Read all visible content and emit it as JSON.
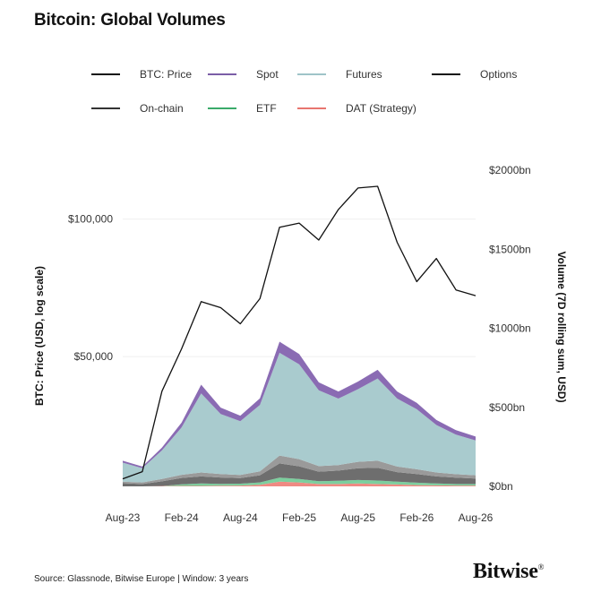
{
  "title": "Bitcoin: Global Volumes",
  "legend": [
    {
      "label": "BTC: Price",
      "color": "#111111"
    },
    {
      "label": "Spot",
      "color": "#7b5ea7"
    },
    {
      "label": "Futures",
      "color": "#9fc4c8"
    },
    {
      "label": "Options",
      "color": "#111111"
    },
    {
      "label": "On-chain",
      "color": "#333333"
    },
    {
      "label": "ETF",
      "color": "#3aaa6a"
    },
    {
      "label": "DAT (Strategy)",
      "color": "#e8756f"
    }
  ],
  "source": "Source: Glassnode, Bitwise Europe | Window: 3 years",
  "brand": "Bitwise",
  "brand_mark": "®",
  "chart_data": {
    "type": "area",
    "x": [
      "Aug-23",
      "Oct-23",
      "Dec-23",
      "Feb-24",
      "Apr-24",
      "Jun-24",
      "Aug-24",
      "Oct-24",
      "Dec-24",
      "Feb-25",
      "Apr-25",
      "Jun-25",
      "Aug-25",
      "Oct-25",
      "Dec-25",
      "Feb-26",
      "Apr-26",
      "Jun-26",
      "Aug-26"
    ],
    "x_tick_labels": [
      "Aug-23",
      "Feb-24",
      "Aug-24",
      "Feb-25",
      "Aug-25",
      "Feb-26",
      "Aug-26"
    ],
    "left_axis": {
      "label": "BTC: Price (USD, log scale)",
      "scale": "log",
      "ticks": [
        50000,
        100000
      ],
      "tick_labels": [
        "$50,000",
        "$100,000"
      ],
      "range": [
        26000,
        128000
      ]
    },
    "right_axis": {
      "label": "Volume (7D rolling sum, USD)",
      "ticks": [
        0,
        500,
        1000,
        1500,
        2000
      ],
      "tick_labels": [
        "$0bn",
        "$500bn",
        "$1000bn",
        "$1500bn",
        "$2000bn"
      ],
      "range": [
        0,
        2000
      ]
    },
    "price": [
      27000,
      28000,
      42000,
      52000,
      66000,
      64000,
      59000,
      67000,
      96000,
      98000,
      90000,
      105000,
      117000,
      118000,
      89000,
      73000,
      82000,
      70000,
      68000
    ],
    "series": [
      {
        "name": "DAT (Strategy)",
        "values": [
          0,
          0,
          2,
          3,
          3,
          4,
          5,
          10,
          30,
          25,
          15,
          15,
          18,
          15,
          12,
          8,
          6,
          5,
          5
        ]
      },
      {
        "name": "ETF",
        "values": [
          0,
          0,
          0,
          10,
          15,
          12,
          12,
          15,
          25,
          22,
          18,
          20,
          22,
          22,
          18,
          15,
          12,
          10,
          10
        ]
      },
      {
        "name": "On-chain",
        "values": [
          20,
          15,
          30,
          40,
          45,
          40,
          35,
          45,
          90,
          80,
          60,
          65,
          75,
          80,
          60,
          55,
          45,
          40,
          35
        ]
      },
      {
        "name": "Options",
        "values": [
          10,
          10,
          15,
          20,
          25,
          22,
          20,
          25,
          50,
          45,
          35,
          35,
          40,
          45,
          35,
          30,
          25,
          22,
          20
        ]
      },
      {
        "name": "Futures",
        "values": [
          120,
          90,
          180,
          300,
          500,
          380,
          340,
          420,
          650,
          600,
          480,
          420,
          460,
          520,
          430,
          380,
          300,
          250,
          220
        ]
      },
      {
        "name": "Spot",
        "values": [
          12,
          10,
          18,
          30,
          55,
          40,
          35,
          42,
          70,
          65,
          50,
          45,
          48,
          55,
          45,
          40,
          32,
          28,
          25
        ]
      }
    ],
    "grid": true,
    "legend_position": "top"
  }
}
